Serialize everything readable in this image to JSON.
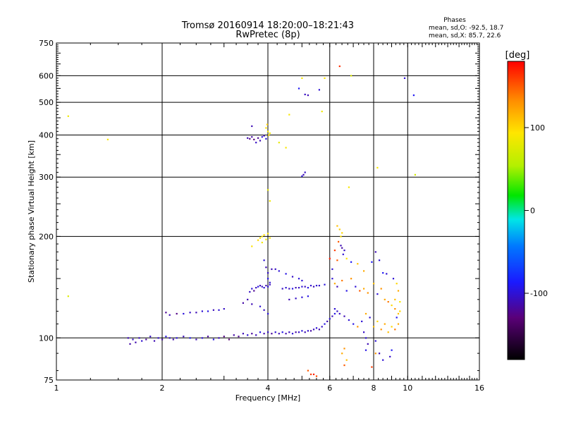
{
  "chart_data": {
    "type": "scatter",
    "title_line1": "Tromsø 20160914 18:20:00–18:21:43",
    "title_line2": "RwPretec (8p)",
    "stats": {
      "heading": "Phases",
      "line_o": "mean, sd,O: -92.5, 18.7",
      "line_x": "mean, sd,X: 85.7, 22.6"
    },
    "xlabel": "Frequency [MHz]",
    "ylabel": "Stationary phase Virtual Height [km]",
    "x_scale": "log",
    "y_scale": "log",
    "xlim": [
      1,
      16
    ],
    "ylim": [
      75,
      750
    ],
    "x_ticks": [
      1,
      2,
      4,
      6,
      8,
      10,
      16
    ],
    "x_tick_labels": [
      "1",
      "2",
      "4",
      "6",
      "8",
      "10",
      "16"
    ],
    "x_grid": [
      2,
      4,
      6,
      8,
      10
    ],
    "y_ticks": [
      75,
      100,
      200,
      300,
      400,
      500,
      600,
      750
    ],
    "y_tick_labels": [
      "75",
      "100",
      "200",
      "300",
      "400",
      "500",
      "600",
      "750"
    ],
    "y_grid": [
      100,
      200,
      300,
      400,
      500,
      600
    ],
    "grid": true,
    "colorbar": {
      "label": "[deg]",
      "min": -180,
      "max": 180,
      "ticks": [
        100,
        0,
        -100
      ],
      "tick_labels": [
        "100",
        "0",
        "-100"
      ]
    },
    "points": [
      [
        1.08,
        133,
        75
      ],
      [
        1.08,
        455,
        85
      ],
      [
        1.4,
        388,
        90
      ],
      [
        1.6,
        100,
        -110
      ],
      [
        1.62,
        96,
        -115
      ],
      [
        1.65,
        99,
        -105
      ],
      [
        1.68,
        97,
        -112
      ],
      [
        1.72,
        100,
        -108
      ],
      [
        1.75,
        98,
        -102
      ],
      [
        1.8,
        99,
        -118
      ],
      [
        1.85,
        101,
        -106
      ],
      [
        1.9,
        98,
        -110
      ],
      [
        1.95,
        100,
        -104
      ],
      [
        2.0,
        99,
        -115
      ],
      [
        2.05,
        101,
        -95
      ],
      [
        2.1,
        100,
        -105
      ],
      [
        2.15,
        99,
        -112
      ],
      [
        2.2,
        100,
        -98
      ],
      [
        2.3,
        101,
        -108
      ],
      [
        2.4,
        100,
        -92
      ],
      [
        2.5,
        99,
        -110
      ],
      [
        2.6,
        100,
        -100
      ],
      [
        2.7,
        101,
        -118
      ],
      [
        2.8,
        99,
        -96
      ],
      [
        2.9,
        100,
        -108
      ],
      [
        3.0,
        101,
        -125
      ],
      [
        3.1,
        99,
        -130
      ],
      [
        3.2,
        102,
        -115
      ],
      [
        3.3,
        101,
        -122
      ],
      [
        3.4,
        103,
        -110
      ],
      [
        3.5,
        102,
        -100
      ],
      [
        3.6,
        103,
        -118
      ],
      [
        3.7,
        102,
        -108
      ],
      [
        3.8,
        104,
        -95
      ],
      [
        3.9,
        103,
        -112
      ],
      [
        4.0,
        104,
        -105
      ],
      [
        4.1,
        103,
        -118
      ],
      [
        4.2,
        104,
        -100
      ],
      [
        4.3,
        103,
        -110
      ],
      [
        4.4,
        104,
        -95
      ],
      [
        4.5,
        103,
        -112
      ],
      [
        4.6,
        104,
        -108
      ],
      [
        4.7,
        103,
        -100
      ],
      [
        4.8,
        104,
        -115
      ],
      [
        4.9,
        104,
        -105
      ],
      [
        5.0,
        105,
        -98
      ],
      [
        5.1,
        104,
        -110
      ],
      [
        5.2,
        105,
        -103
      ],
      [
        5.3,
        105,
        -115
      ],
      [
        5.4,
        106,
        -108
      ],
      [
        5.5,
        107,
        -100
      ],
      [
        5.6,
        106,
        -112
      ],
      [
        5.7,
        108,
        -105
      ],
      [
        5.8,
        110,
        -95
      ],
      [
        5.9,
        112,
        -110
      ],
      [
        6.0,
        114,
        -100
      ],
      [
        6.1,
        116,
        -108
      ],
      [
        6.2,
        118,
        -95
      ],
      [
        6.3,
        120,
        -105
      ],
      [
        2.05,
        119,
        -120
      ],
      [
        2.1,
        117,
        -110
      ],
      [
        2.2,
        118,
        -125
      ],
      [
        2.3,
        118,
        -98
      ],
      [
        2.4,
        119,
        -105
      ],
      [
        2.5,
        119,
        -110
      ],
      [
        2.6,
        120,
        -100
      ],
      [
        2.7,
        120,
        -95
      ],
      [
        2.8,
        121,
        -108
      ],
      [
        2.9,
        121,
        -100
      ],
      [
        3.0,
        122,
        -105
      ],
      [
        3.4,
        127,
        -115
      ],
      [
        3.5,
        130,
        -110
      ],
      [
        3.55,
        137,
        -105
      ],
      [
        3.6,
        140,
        -100
      ],
      [
        3.65,
        138,
        -120
      ],
      [
        3.7,
        141,
        -108
      ],
      [
        3.75,
        142,
        -95
      ],
      [
        3.8,
        143,
        -110
      ],
      [
        3.85,
        142,
        -105
      ],
      [
        3.9,
        141,
        -100
      ],
      [
        3.95,
        143,
        -112
      ],
      [
        4.0,
        142,
        -98
      ],
      [
        4.05,
        144,
        -108
      ],
      [
        3.6,
        126,
        -110
      ],
      [
        3.8,
        124,
        -100
      ],
      [
        3.9,
        121,
        -105
      ],
      [
        4.0,
        118,
        -98
      ],
      [
        3.9,
        170,
        -100
      ],
      [
        3.95,
        162,
        -110
      ],
      [
        4.0,
        156,
        -105
      ],
      [
        4.0,
        150,
        -95
      ],
      [
        4.05,
        146,
        -100
      ],
      [
        4.1,
        160,
        -110
      ],
      [
        4.2,
        160,
        -105
      ],
      [
        4.3,
        158,
        -100
      ],
      [
        4.5,
        155,
        -95
      ],
      [
        4.7,
        152,
        -105
      ],
      [
        4.9,
        150,
        -98
      ],
      [
        5.0,
        148,
        -100
      ],
      [
        4.4,
        140,
        -105
      ],
      [
        4.5,
        141,
        -100
      ],
      [
        4.6,
        140,
        -108
      ],
      [
        4.7,
        140,
        -95
      ],
      [
        4.8,
        141,
        -110
      ],
      [
        4.9,
        141,
        -105
      ],
      [
        5.0,
        142,
        -100
      ],
      [
        5.1,
        142,
        -108
      ],
      [
        5.2,
        141,
        -95
      ],
      [
        5.3,
        143,
        -102
      ],
      [
        5.4,
        142,
        -110
      ],
      [
        5.5,
        143,
        -100
      ],
      [
        5.6,
        143,
        -105
      ],
      [
        5.8,
        144,
        -98
      ],
      [
        4.6,
        130,
        -110
      ],
      [
        4.8,
        131,
        -105
      ],
      [
        5.0,
        132,
        -100
      ],
      [
        5.2,
        133,
        -95
      ],
      [
        3.5,
        392,
        -110
      ],
      [
        3.55,
        390,
        -125
      ],
      [
        3.6,
        395,
        -115
      ],
      [
        3.65,
        388,
        -130
      ],
      [
        3.7,
        380,
        -105
      ],
      [
        3.75,
        392,
        -120
      ],
      [
        3.8,
        385,
        -110
      ],
      [
        3.85,
        395,
        -100
      ],
      [
        3.9,
        398,
        -110
      ],
      [
        3.95,
        390,
        -95
      ],
      [
        3.6,
        425,
        -110
      ],
      [
        3.95,
        420,
        95
      ],
      [
        4.0,
        410,
        90
      ],
      [
        4.02,
        400,
        100
      ],
      [
        3.98,
        430,
        105
      ],
      [
        4.05,
        405,
        85
      ],
      [
        4.3,
        380,
        80
      ],
      [
        4.5,
        367,
        90
      ],
      [
        3.8,
        198,
        95
      ],
      [
        3.85,
        200,
        90
      ],
      [
        3.9,
        202,
        100
      ],
      [
        3.95,
        196,
        85
      ],
      [
        4.0,
        204,
        95
      ],
      [
        4.05,
        198,
        92
      ],
      [
        3.75,
        195,
        100
      ],
      [
        3.85,
        192,
        88
      ],
      [
        3.6,
        187,
        95
      ],
      [
        4.0,
        275,
        80
      ],
      [
        4.05,
        255,
        85
      ],
      [
        5.05,
        305,
        -110
      ],
      [
        5.1,
        310,
        -105
      ],
      [
        5.0,
        302,
        -100
      ],
      [
        5.1,
        528,
        -105
      ],
      [
        5.2,
        525,
        -110
      ],
      [
        5.6,
        545,
        -100
      ],
      [
        5.8,
        590,
        95
      ],
      [
        5.0,
        590,
        90
      ],
      [
        5.7,
        470,
        85
      ],
      [
        4.6,
        460,
        90
      ],
      [
        4.9,
        550,
        -90
      ],
      [
        6.4,
        640,
        165
      ],
      [
        6.9,
        600,
        75
      ],
      [
        9.8,
        590,
        -100
      ],
      [
        10.4,
        525,
        -90
      ],
      [
        10.5,
        305,
        70
      ],
      [
        8.2,
        320,
        90
      ],
      [
        6.8,
        280,
        90
      ],
      [
        6.3,
        215,
        110
      ],
      [
        6.4,
        210,
        105
      ],
      [
        6.5,
        205,
        100
      ],
      [
        6.45,
        200,
        95
      ],
      [
        6.35,
        193,
        150
      ],
      [
        6.45,
        188,
        -110
      ],
      [
        6.5,
        185,
        -115
      ],
      [
        6.6,
        182,
        -105
      ],
      [
        6.55,
        177,
        -100
      ],
      [
        6.2,
        182,
        160
      ],
      [
        6.0,
        172,
        170
      ],
      [
        6.1,
        160,
        -100
      ],
      [
        6.3,
        170,
        150
      ],
      [
        6.7,
        172,
        95
      ],
      [
        6.9,
        168,
        -90
      ],
      [
        7.2,
        166,
        110
      ],
      [
        7.5,
        158,
        120
      ],
      [
        7.9,
        168,
        -90
      ],
      [
        8.1,
        180,
        -110
      ],
      [
        8.3,
        170,
        -100
      ],
      [
        8.5,
        156,
        -90
      ],
      [
        8.7,
        155,
        -100
      ],
      [
        6.1,
        150,
        -100
      ],
      [
        6.2,
        145,
        120
      ],
      [
        6.3,
        142,
        -110
      ],
      [
        6.5,
        148,
        140
      ],
      [
        6.7,
        138,
        -95
      ],
      [
        6.9,
        150,
        130
      ],
      [
        7.1,
        142,
        -100
      ],
      [
        7.3,
        138,
        150
      ],
      [
        7.5,
        140,
        120
      ],
      [
        7.7,
        136,
        130
      ],
      [
        8.0,
        145,
        110
      ],
      [
        8.2,
        135,
        -100
      ],
      [
        8.4,
        140,
        130
      ],
      [
        8.6,
        130,
        120
      ],
      [
        8.8,
        128,
        140
      ],
      [
        9.0,
        125,
        100
      ],
      [
        9.2,
        122,
        130
      ],
      [
        9.4,
        118,
        110
      ],
      [
        9.5,
        128,
        90
      ],
      [
        9.3,
        115,
        -90
      ],
      [
        6.2,
        122,
        -100
      ],
      [
        6.4,
        118,
        -105
      ],
      [
        6.6,
        116,
        -110
      ],
      [
        6.8,
        113,
        -100
      ],
      [
        7.0,
        110,
        -95
      ],
      [
        7.2,
        108,
        130
      ],
      [
        7.4,
        112,
        -100
      ],
      [
        7.6,
        118,
        120
      ],
      [
        7.8,
        115,
        -100
      ],
      [
        8.0,
        108,
        110
      ],
      [
        8.2,
        112,
        100
      ],
      [
        8.4,
        106,
        130
      ],
      [
        8.6,
        110,
        120
      ],
      [
        8.8,
        104,
        110
      ],
      [
        9.0,
        108,
        100
      ],
      [
        9.2,
        106,
        140
      ],
      [
        9.4,
        110,
        120
      ],
      [
        7.5,
        104,
        -105
      ],
      [
        7.6,
        100,
        -100
      ],
      [
        7.7,
        96,
        -110
      ],
      [
        7.6,
        92,
        -95
      ],
      [
        8.1,
        98,
        -100
      ],
      [
        8.3,
        90,
        -110
      ],
      [
        8.5,
        86,
        -100
      ],
      [
        8.9,
        88,
        -105
      ],
      [
        9.0,
        92,
        -90
      ],
      [
        6.6,
        93,
        130
      ],
      [
        6.5,
        90,
        120
      ],
      [
        6.7,
        86,
        110
      ],
      [
        6.6,
        83,
        150
      ],
      [
        5.2,
        80,
        150
      ],
      [
        5.3,
        78,
        160
      ],
      [
        5.4,
        78,
        170
      ],
      [
        5.5,
        77,
        155
      ],
      [
        7.9,
        82,
        160
      ],
      [
        8.1,
        90,
        130
      ],
      [
        9.3,
        145,
        100
      ],
      [
        9.4,
        138,
        120
      ],
      [
        9.2,
        130,
        110
      ],
      [
        9.1,
        150,
        -100
      ],
      [
        9.5,
        120,
        100
      ]
    ]
  }
}
